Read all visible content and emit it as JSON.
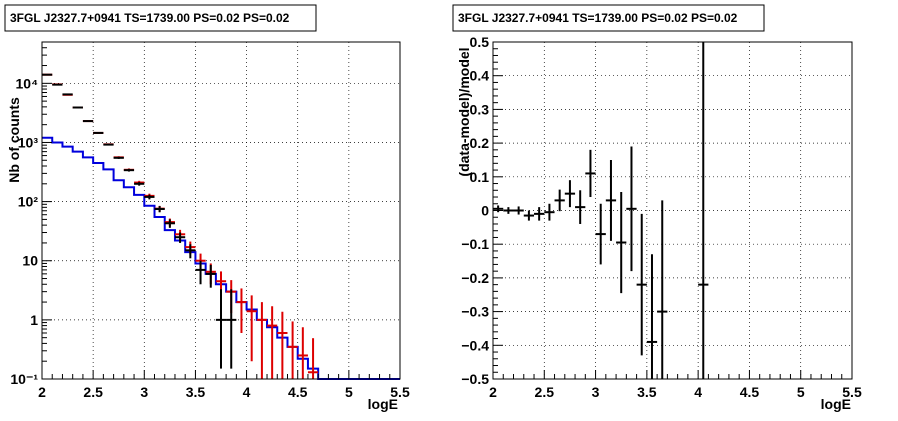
{
  "colors": {
    "data": "#000000",
    "model_red": "#dd0000",
    "model_blue": "#0000dd",
    "frame": "#000000",
    "grid": "#000000"
  },
  "chart_data": [
    {
      "type": "line",
      "title": "3FGL J2327.7+0941 TS=1739.00 PS=0.02 PS=0.02",
      "xlabel": "logE",
      "ylabel": "Nb of counts",
      "xlim": [
        2,
        5.5
      ],
      "ylim": [
        0.1,
        50000
      ],
      "yscale": "log",
      "grid": true,
      "x_ticks": [
        "2",
        "2.5",
        "3",
        "3.5",
        "4",
        "4.5",
        "5",
        "5.5"
      ],
      "y_ticks": [
        "10⁻¹",
        "1",
        "10",
        "10²",
        "10³",
        "10⁴"
      ],
      "bin_edges": [
        2.0,
        2.1,
        2.2,
        2.3,
        2.4,
        2.5,
        2.6,
        2.7,
        2.8,
        2.9,
        3.0,
        3.1,
        3.2,
        3.3,
        3.4,
        3.5,
        3.6,
        3.7,
        3.8,
        3.9,
        4.0,
        4.1,
        4.2,
        4.3,
        4.4,
        4.5,
        4.6,
        4.7,
        4.8,
        4.9,
        5.0,
        5.1,
        5.2,
        5.3,
        5.4,
        5.5
      ],
      "series": [
        {
          "role": "data",
          "x": [
            2.05,
            2.15,
            2.25,
            2.35,
            2.45,
            2.55,
            2.65,
            2.75,
            2.85,
            2.95,
            3.05,
            3.15,
            3.25,
            3.35,
            3.45,
            3.55,
            3.65,
            3.75,
            3.85
          ],
          "y": [
            14000,
            9500,
            6500,
            3900,
            2300,
            1450,
            920,
            550,
            340,
            200,
            120,
            75,
            43,
            25,
            15,
            7,
            6,
            1,
            1
          ],
          "yerr_lo": [
            120,
            100,
            80,
            60,
            48,
            38,
            30,
            23,
            18,
            14,
            11,
            9,
            7,
            5,
            4,
            3,
            2.5,
            0.85,
            0.85
          ],
          "yerr_hi": [
            120,
            100,
            80,
            60,
            48,
            38,
            30,
            23,
            18,
            14,
            11,
            9,
            7,
            5,
            4,
            3,
            2.5,
            2.3,
            2.3
          ]
        },
        {
          "role": "model-total",
          "x": [
            2.05,
            2.15,
            2.25,
            2.35,
            2.45,
            2.55,
            2.65,
            2.75,
            2.85,
            2.95,
            3.05,
            3.15,
            3.25,
            3.35,
            3.45,
            3.55,
            3.65,
            3.75,
            3.85,
            3.95,
            4.05,
            4.15,
            4.25,
            4.35,
            4.45,
            4.55,
            4.65
          ],
          "y": [
            14000,
            9600,
            6400,
            3900,
            2300,
            1450,
            930,
            560,
            345,
            210,
            125,
            76,
            45,
            28,
            17,
            10,
            6.5,
            4.5,
            3,
            2,
            1.4,
            1,
            0.8,
            0.6,
            0.35,
            0.25,
            0.13
          ],
          "yerr": [
            118,
            98,
            80,
            62,
            48,
            38,
            30,
            23.7,
            18.6,
            14.5,
            11.2,
            8.7,
            6.7,
            5.3,
            4.1,
            3.2,
            2.5,
            2.1,
            1.7,
            1.4,
            1.2,
            1,
            0.9,
            0.77,
            0.59,
            0.5,
            0.36
          ]
        },
        {
          "role": "model-component",
          "y": [
            1200,
            1000,
            850,
            700,
            560,
            450,
            350,
            230,
            175,
            130,
            85,
            55,
            33,
            22,
            14,
            9,
            6,
            4,
            3,
            2,
            1.5,
            1,
            0.75,
            0.5,
            0.35,
            0.22,
            0.15,
            0.1,
            0.1,
            0.1,
            0.1,
            0.1,
            0.1,
            0.1,
            0.1
          ]
        }
      ]
    },
    {
      "type": "scatter",
      "title": "3FGL J2327.7+0941 TS=1739.00 PS=0.02 PS=0.02",
      "xlabel": "logE",
      "ylabel": "(data-model)/model",
      "xlim": [
        2,
        5.5
      ],
      "ylim": [
        -0.5,
        0.5
      ],
      "grid": true,
      "x_ticks": [
        "2",
        "2.5",
        "3",
        "3.5",
        "4",
        "4.5",
        "5",
        "5.5"
      ],
      "y_ticks": [
        "−0.5",
        "−0.4",
        "−0.3",
        "−0.2",
        "−0.1",
        "0",
        "0.1",
        "0.2",
        "0.3",
        "0.4",
        "0.5"
      ],
      "x": [
        2.05,
        2.15,
        2.25,
        2.35,
        2.45,
        2.55,
        2.65,
        2.75,
        2.85,
        2.95,
        3.05,
        3.15,
        3.25,
        3.35,
        3.45,
        3.55,
        3.65,
        4.05
      ],
      "y": [
        0.005,
        0.0,
        0.0,
        -0.015,
        -0.01,
        -0.005,
        0.03,
        0.05,
        0.01,
        0.11,
        -0.07,
        0.03,
        -0.095,
        0.005,
        -0.22,
        -0.39,
        -0.3,
        -0.22
      ],
      "yerr": [
        0.01,
        0.01,
        0.012,
        0.015,
        0.02,
        0.025,
        0.032,
        0.04,
        0.05,
        0.07,
        0.09,
        0.12,
        0.15,
        0.185,
        0.21,
        0.26,
        0.33,
        1.0
      ]
    }
  ]
}
